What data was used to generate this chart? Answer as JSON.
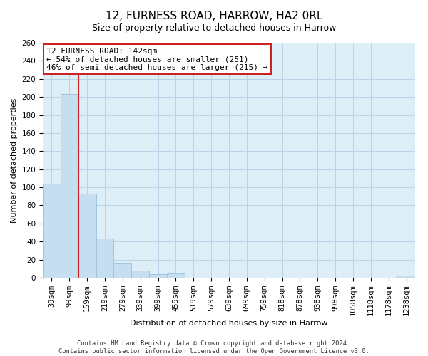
{
  "title": "12, FURNESS ROAD, HARROW, HA2 0RL",
  "subtitle": "Size of property relative to detached houses in Harrow",
  "xlabel": "Distribution of detached houses by size in Harrow",
  "ylabel": "Number of detached properties",
  "bar_labels": [
    "39sqm",
    "99sqm",
    "159sqm",
    "219sqm",
    "279sqm",
    "339sqm",
    "399sqm",
    "459sqm",
    "519sqm",
    "579sqm",
    "639sqm",
    "699sqm",
    "759sqm",
    "818sqm",
    "878sqm",
    "938sqm",
    "998sqm",
    "1058sqm",
    "1118sqm",
    "1178sqm",
    "1238sqm"
  ],
  "bar_values": [
    104,
    203,
    93,
    43,
    16,
    8,
    4,
    5,
    0,
    0,
    0,
    0,
    0,
    0,
    0,
    0,
    0,
    0,
    0,
    0,
    2
  ],
  "bar_color": "#c5dff0",
  "bar_edge_color": "#a0c4dc",
  "vline_color": "#cc2222",
  "annotation_line1": "12 FURNESS ROAD: 142sqm",
  "annotation_line2": "← 54% of detached houses are smaller (251)",
  "annotation_line3": "46% of semi-detached houses are larger (215) →",
  "annotation_box_color": "#ffffff",
  "annotation_box_edge": "#cc2222",
  "ylim": [
    0,
    260
  ],
  "yticks": [
    0,
    20,
    40,
    60,
    80,
    100,
    120,
    140,
    160,
    180,
    200,
    220,
    240,
    260
  ],
  "bg_color": "#ddeef7",
  "grid_color": "#b8d4e8",
  "footnote1": "Contains HM Land Registry data © Crown copyright and database right 2024.",
  "footnote2": "Contains public sector information licensed under the Open Government Licence v3.0.",
  "title_fontsize": 11,
  "subtitle_fontsize": 9,
  "axis_label_fontsize": 8,
  "tick_fontsize": 7.5,
  "annot_fontsize": 8
}
